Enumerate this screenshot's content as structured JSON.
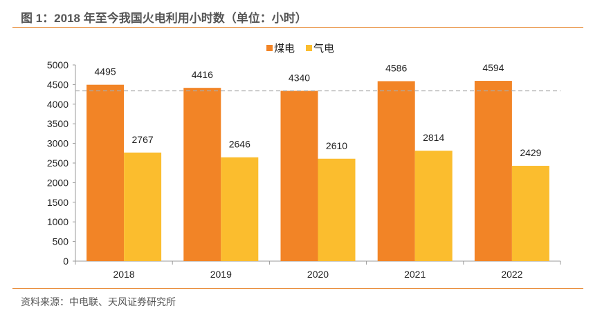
{
  "title": "图 1：2018 年至今我国火电利用小时数（单位：小时）",
  "source": "资料来源：中电联、天风证券研究所",
  "chart_data": {
    "type": "bar",
    "title": "图 1：2018 年至今我国火电利用小时数（单位：小时）",
    "categories": [
      "2018",
      "2019",
      "2020",
      "2021",
      "2022"
    ],
    "series": [
      {
        "name": "煤电",
        "values": [
          4495,
          4416,
          4340,
          4586,
          4594
        ],
        "color": "#f28426"
      },
      {
        "name": "气电",
        "values": [
          2767,
          2646,
          2610,
          2814,
          2429
        ],
        "color": "#fbbd2e"
      }
    ],
    "ylim": [
      0,
      5000
    ],
    "yticks": [
      0,
      500,
      1000,
      1500,
      2000,
      2500,
      3000,
      3500,
      4000,
      4500,
      5000
    ],
    "reference_line": {
      "value": 4340,
      "style": "dashed",
      "color": "#aaaaaa"
    },
    "legend": "top-right",
    "grid": false,
    "xlabel": "",
    "ylabel": ""
  }
}
